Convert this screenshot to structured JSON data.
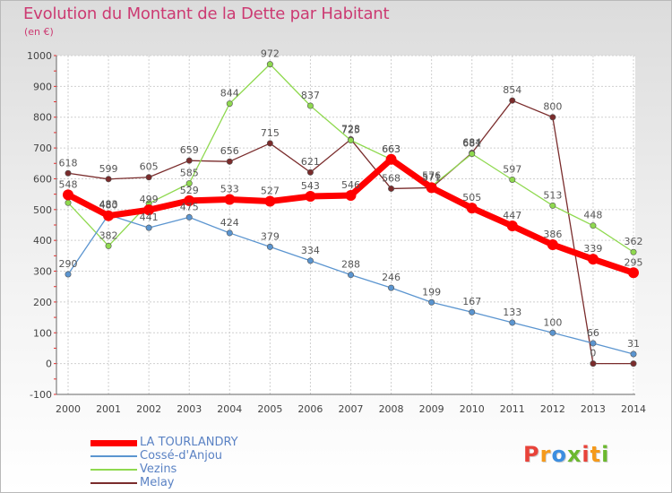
{
  "chart_data": {
    "type": "line",
    "title": "Evolution du Montant de la Dette par Habitant",
    "subtitle": "(en €)",
    "categories": [
      "2000",
      "2001",
      "2002",
      "2003",
      "2004",
      "2005",
      "2006",
      "2007",
      "2008",
      "2009",
      "2010",
      "2011",
      "2012",
      "2013",
      "2014"
    ],
    "ylim": [
      -100,
      1000
    ],
    "yticks": [
      "-100",
      "0",
      "100",
      "200",
      "300",
      "400",
      "500",
      "600",
      "700",
      "800",
      "900",
      "1000"
    ],
    "grid": true,
    "legend_position": "bottom-left",
    "series": [
      {
        "name": "Melay",
        "color": "#7a2c2c",
        "values": [
          618,
          599,
          605,
          659,
          656,
          715,
          621,
          728,
          568,
          571,
          684,
          854,
          800,
          0,
          0
        ],
        "labels": [
          "618",
          "599",
          "605",
          "659",
          "656",
          "715",
          "621",
          "728",
          "568",
          "571",
          "684",
          "854",
          "800",
          "0",
          ""
        ]
      },
      {
        "name": "Vezins",
        "color": "#8fd94f",
        "values": [
          522,
          382,
          520,
          585,
          844,
          972,
          837,
          725,
          663,
          576,
          681,
          597,
          513,
          448,
          362
        ],
        "labels": [
          "",
          "382",
          "",
          "585",
          "844",
          "972",
          "837",
          "725",
          "663",
          "576",
          "681",
          "597",
          "513",
          "448",
          "362"
        ]
      },
      {
        "name": "Cossé-d'Anjou",
        "color": "#5b95d0",
        "values": [
          290,
          483,
          441,
          475,
          424,
          379,
          334,
          288,
          246,
          199,
          167,
          133,
          100,
          66,
          31
        ],
        "labels": [
          "290",
          "483",
          "441",
          "475",
          "424",
          "379",
          "334",
          "288",
          "246",
          "199",
          "167",
          "133",
          "100",
          "66",
          "31"
        ]
      },
      {
        "name": "LA TOURLANDRY",
        "color": "#ff0000",
        "values": [
          548,
          480,
          499,
          529,
          533,
          527,
          543,
          546,
          663,
          571,
          505,
          447,
          386,
          339,
          295
        ],
        "labels": [
          "548",
          "480",
          "499",
          "529",
          "533",
          "527",
          "543",
          "546",
          "663",
          "571",
          "505",
          "447",
          "386",
          "339",
          "295"
        ]
      }
    ]
  },
  "legend": [
    {
      "name": "LA TOURLANDRY",
      "color": "#ff0000",
      "thick": true
    },
    {
      "name": "Cossé-d'Anjou",
      "color": "#5b95d0",
      "thick": false
    },
    {
      "name": "Vezins",
      "color": "#8fd94f",
      "thick": false
    },
    {
      "name": "Melay",
      "color": "#7a2c2c",
      "thick": false
    }
  ],
  "logo": {
    "text": "Proxiti",
    "colors": [
      "#e8433a",
      "#f59a1b",
      "#3c8ee0",
      "#6bb82e",
      "#e8433a",
      "#f59a1b",
      "#6bb82e"
    ]
  }
}
